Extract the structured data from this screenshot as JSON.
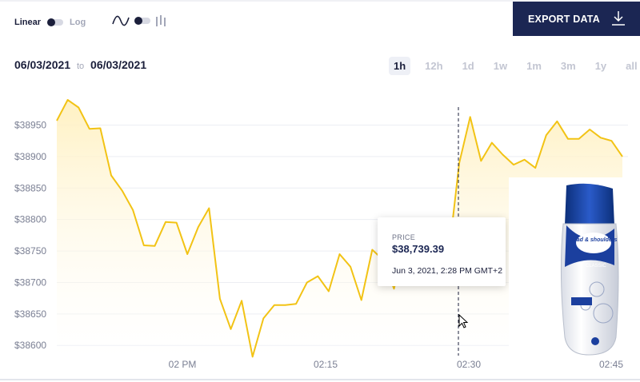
{
  "controls": {
    "scale_on": "Linear",
    "scale_off": "Log",
    "chart_type_icons": [
      "line-chart-icon",
      "bar-chart-icon"
    ]
  },
  "export": {
    "label": "EXPORT DATA",
    "icon": "download-icon"
  },
  "daterange": {
    "from": "06/03/2021",
    "to_word": "to",
    "to": "06/03/2021"
  },
  "ranges": [
    {
      "label": "1h",
      "active": true
    },
    {
      "label": "12h",
      "active": false
    },
    {
      "label": "1d",
      "active": false
    },
    {
      "label": "1w",
      "active": false
    },
    {
      "label": "1m",
      "active": false
    },
    {
      "label": "3m",
      "active": false
    },
    {
      "label": "1y",
      "active": false
    },
    {
      "label": "all",
      "active": false
    }
  ],
  "tooltip": {
    "label": "PRICE",
    "value": "$38,739.39",
    "time": "Jun 3, 2021, 2:28 PM GMT+2"
  },
  "ad": {
    "brand": "head & shoulders",
    "variant": "CLASSIC"
  },
  "colors": {
    "line": "#f2c315",
    "accent": "#1b2653",
    "fill": "#fff3cc"
  },
  "chart_data": {
    "type": "area",
    "y_ticks": [
      38600,
      38650,
      38700,
      38750,
      38800,
      38850,
      38900,
      38950
    ],
    "y_tick_labels": [
      "$38600",
      "$38650",
      "$38700",
      "$38750",
      "$38800",
      "$38850",
      "$38900",
      "$38950"
    ],
    "x_tick_labels": [
      "02 PM",
      "02:15",
      "02:30",
      "02:45"
    ],
    "ylim": [
      38580,
      38990
    ],
    "grid": true,
    "values": [
      38957,
      38990,
      38978,
      38944,
      38945,
      38870,
      38846,
      38815,
      38759,
      38758,
      38796,
      38795,
      38745,
      38788,
      38818,
      38674,
      38626,
      38671,
      38582,
      38643,
      38664,
      38664,
      38666,
      38700,
      38710,
      38686,
      38745,
      38725,
      38672,
      38752,
      38736,
      38690,
      38762,
      38752,
      38772,
      38765,
      38740,
      38890,
      38963,
      38893,
      38922,
      38903,
      38887,
      38895,
      38882,
      38934,
      38956,
      38928,
      38928,
      38943,
      38930,
      38925,
      38900
    ]
  }
}
